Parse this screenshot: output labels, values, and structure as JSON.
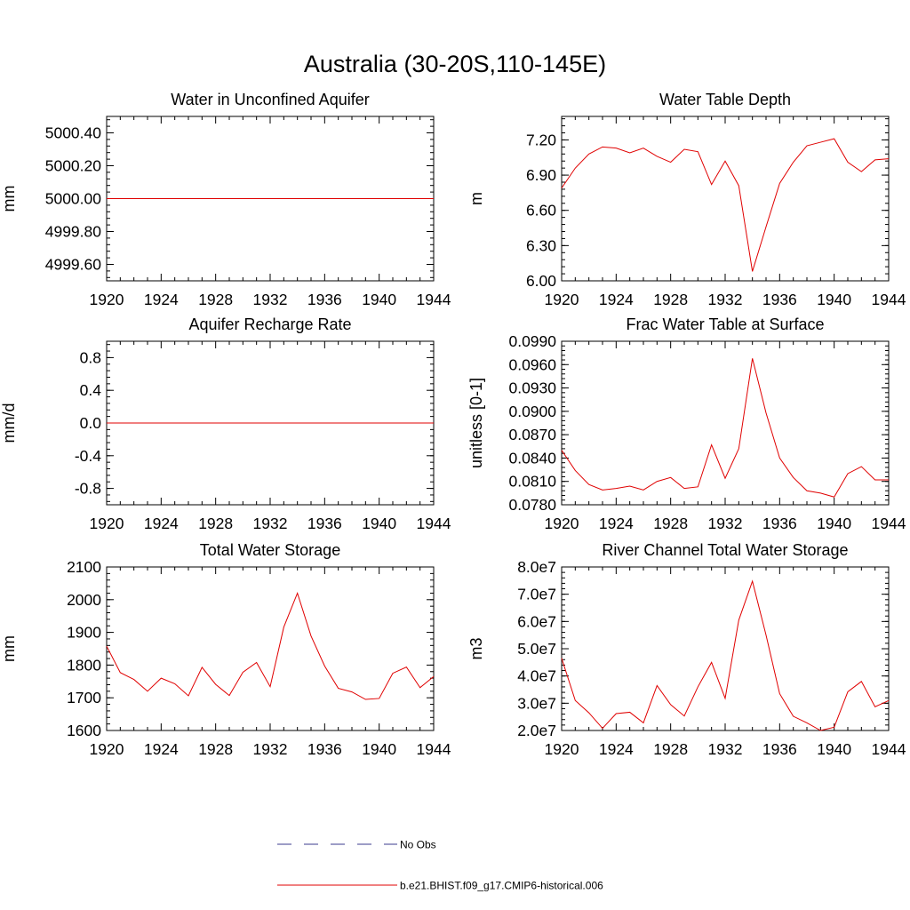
{
  "figure": {
    "title": "Australia (30-20S,110-145E)",
    "legend": [
      {
        "label": "No Obs",
        "color": "#3b3b8f",
        "style": "dashed"
      },
      {
        "label": "b.e21.BHIST.f09_g17.CMIP6-historical.006",
        "color": "#e00000",
        "style": "solid"
      }
    ],
    "line_color": "#e00000"
  },
  "chart_data": [
    {
      "type": "line",
      "title": "Water in Unconfined Aquifer",
      "ylabel": "mm",
      "xlim": [
        1920,
        1944
      ],
      "ylim": [
        4999.5,
        5000.5
      ],
      "xticks": [
        "1920",
        "1924",
        "1928",
        "1932",
        "1936",
        "1940",
        "1944"
      ],
      "yticks": [
        {
          "v": 4999.6,
          "label": "4999.60"
        },
        {
          "v": 4999.8,
          "label": "4999.80"
        },
        {
          "v": 5000.0,
          "label": "5000.00"
        },
        {
          "v": 5000.2,
          "label": "5000.20"
        },
        {
          "v": 5000.4,
          "label": "5000.40"
        }
      ],
      "x": [
        1920,
        1921,
        1922,
        1923,
        1924,
        1925,
        1926,
        1927,
        1928,
        1929,
        1930,
        1931,
        1932,
        1933,
        1934,
        1935,
        1936,
        1937,
        1938,
        1939,
        1940,
        1941,
        1942,
        1943,
        1944
      ],
      "values": [
        5000,
        5000,
        5000,
        5000,
        5000,
        5000,
        5000,
        5000,
        5000,
        5000,
        5000,
        5000,
        5000,
        5000,
        5000,
        5000,
        5000,
        5000,
        5000,
        5000,
        5000,
        5000,
        5000,
        5000,
        5000
      ]
    },
    {
      "type": "line",
      "title": "Water Table Depth",
      "ylabel": "m",
      "xlim": [
        1920,
        1944
      ],
      "ylim": [
        6.0,
        7.4
      ],
      "xticks": [
        "1920",
        "1924",
        "1928",
        "1932",
        "1936",
        "1940",
        "1944"
      ],
      "yticks": [
        {
          "v": 6.0,
          "label": "6.00"
        },
        {
          "v": 6.3,
          "label": "6.30"
        },
        {
          "v": 6.6,
          "label": "6.60"
        },
        {
          "v": 6.9,
          "label": "6.90"
        },
        {
          "v": 7.2,
          "label": "7.20"
        }
      ],
      "x": [
        1920,
        1921,
        1922,
        1923,
        1924,
        1925,
        1926,
        1927,
        1928,
        1929,
        1930,
        1931,
        1932,
        1933,
        1934,
        1935,
        1936,
        1937,
        1938,
        1939,
        1940,
        1941,
        1942,
        1943,
        1944
      ],
      "values": [
        6.79,
        6.96,
        7.08,
        7.14,
        7.13,
        7.09,
        7.13,
        7.06,
        7.01,
        7.12,
        7.1,
        6.82,
        7.02,
        6.81,
        6.08,
        6.46,
        6.83,
        7.01,
        7.15,
        7.18,
        7.21,
        7.01,
        6.93,
        7.03,
        7.04
      ]
    },
    {
      "type": "line",
      "title": "Aquifer Recharge Rate",
      "ylabel": "mm/d",
      "xlim": [
        1920,
        1944
      ],
      "ylim": [
        -1.0,
        1.0
      ],
      "xticks": [
        "1920",
        "1924",
        "1928",
        "1932",
        "1936",
        "1940",
        "1944"
      ],
      "yticks": [
        {
          "v": -0.8,
          "label": "-0.8"
        },
        {
          "v": -0.4,
          "label": "-0.4"
        },
        {
          "v": 0.0,
          "label": "0.0"
        },
        {
          "v": 0.4,
          "label": "0.4"
        },
        {
          "v": 0.8,
          "label": "0.8"
        }
      ],
      "x": [
        1920,
        1921,
        1922,
        1923,
        1924,
        1925,
        1926,
        1927,
        1928,
        1929,
        1930,
        1931,
        1932,
        1933,
        1934,
        1935,
        1936,
        1937,
        1938,
        1939,
        1940,
        1941,
        1942,
        1943,
        1944
      ],
      "values": [
        0,
        0,
        0,
        0,
        0,
        0,
        0,
        0,
        0,
        0,
        0,
        0,
        0,
        0,
        0,
        0,
        0,
        0,
        0,
        0,
        0,
        0,
        0,
        0,
        0
      ]
    },
    {
      "type": "line",
      "title": "Frac Water Table at Surface",
      "ylabel": "unitless [0-1]",
      "xlim": [
        1920,
        1944
      ],
      "ylim": [
        0.078,
        0.099
      ],
      "xticks": [
        "1920",
        "1924",
        "1928",
        "1932",
        "1936",
        "1940",
        "1944"
      ],
      "yticks": [
        {
          "v": 0.078,
          "label": "0.0780"
        },
        {
          "v": 0.081,
          "label": "0.0810"
        },
        {
          "v": 0.084,
          "label": "0.0840"
        },
        {
          "v": 0.087,
          "label": "0.0870"
        },
        {
          "v": 0.09,
          "label": "0.0900"
        },
        {
          "v": 0.093,
          "label": "0.0930"
        },
        {
          "v": 0.096,
          "label": "0.0960"
        },
        {
          "v": 0.099,
          "label": "0.0990"
        }
      ],
      "x": [
        1920,
        1921,
        1922,
        1923,
        1924,
        1925,
        1926,
        1927,
        1928,
        1929,
        1930,
        1931,
        1932,
        1933,
        1934,
        1935,
        1936,
        1937,
        1938,
        1939,
        1940,
        1941,
        1942,
        1943,
        1944
      ],
      "values": [
        0.085,
        0.0824,
        0.0806,
        0.0799,
        0.0801,
        0.0804,
        0.0799,
        0.081,
        0.0815,
        0.0801,
        0.0803,
        0.0857,
        0.0814,
        0.0852,
        0.0968,
        0.0898,
        0.084,
        0.0815,
        0.0798,
        0.0795,
        0.079,
        0.082,
        0.0829,
        0.0812,
        0.0812
      ]
    },
    {
      "type": "line",
      "title": "Total Water Storage",
      "ylabel": "mm",
      "xlim": [
        1920,
        1944
      ],
      "ylim": [
        1600,
        2100
      ],
      "xticks": [
        "1920",
        "1924",
        "1928",
        "1932",
        "1936",
        "1940",
        "1944"
      ],
      "yticks": [
        {
          "v": 1600,
          "label": "1600"
        },
        {
          "v": 1700,
          "label": "1700"
        },
        {
          "v": 1800,
          "label": "1800"
        },
        {
          "v": 1900,
          "label": "1900"
        },
        {
          "v": 2000,
          "label": "2000"
        },
        {
          "v": 2100,
          "label": "2100"
        }
      ],
      "x": [
        1920,
        1921,
        1922,
        1923,
        1924,
        1925,
        1926,
        1927,
        1928,
        1929,
        1930,
        1931,
        1932,
        1933,
        1934,
        1935,
        1936,
        1937,
        1938,
        1939,
        1940,
        1941,
        1942,
        1943,
        1944
      ],
      "values": [
        1858,
        1777,
        1756,
        1720,
        1760,
        1743,
        1706,
        1793,
        1741,
        1707,
        1778,
        1808,
        1734,
        1916,
        2020,
        1889,
        1797,
        1729,
        1718,
        1695,
        1698,
        1775,
        1794,
        1731,
        1765
      ]
    },
    {
      "type": "line",
      "title": "River Channel Total Water Storage",
      "ylabel": "m3",
      "xlim": [
        1920,
        1944
      ],
      "ylim": [
        20000000.0,
        80000000.0
      ],
      "xticks": [
        "1920",
        "1924",
        "1928",
        "1932",
        "1936",
        "1940",
        "1944"
      ],
      "yticks": [
        {
          "v": 20000000.0,
          "label": "2.0e7"
        },
        {
          "v": 30000000.0,
          "label": "3.0e7"
        },
        {
          "v": 40000000.0,
          "label": "4.0e7"
        },
        {
          "v": 50000000.0,
          "label": "5.0e7"
        },
        {
          "v": 60000000.0,
          "label": "6.0e7"
        },
        {
          "v": 70000000.0,
          "label": "7.0e7"
        },
        {
          "v": 80000000.0,
          "label": "8.0e7"
        }
      ],
      "x": [
        1920,
        1921,
        1922,
        1923,
        1924,
        1925,
        1926,
        1927,
        1928,
        1929,
        1930,
        1931,
        1932,
        1933,
        1934,
        1935,
        1936,
        1937,
        1938,
        1939,
        1940,
        1941,
        1942,
        1943,
        1944
      ],
      "values": [
        46500000.0,
        31000000.0,
        26500000.0,
        20800000.0,
        26200000.0,
        26700000.0,
        22800000.0,
        36500000.0,
        29500000.0,
        25300000.0,
        36000000.0,
        45000000.0,
        31800000.0,
        60500000.0,
        74800000.0,
        55000000.0,
        33500000.0,
        25200000.0,
        22800000.0,
        20000000.0,
        21200000.0,
        34200000.0,
        38000000.0,
        28700000.0,
        31000000.0
      ]
    }
  ]
}
